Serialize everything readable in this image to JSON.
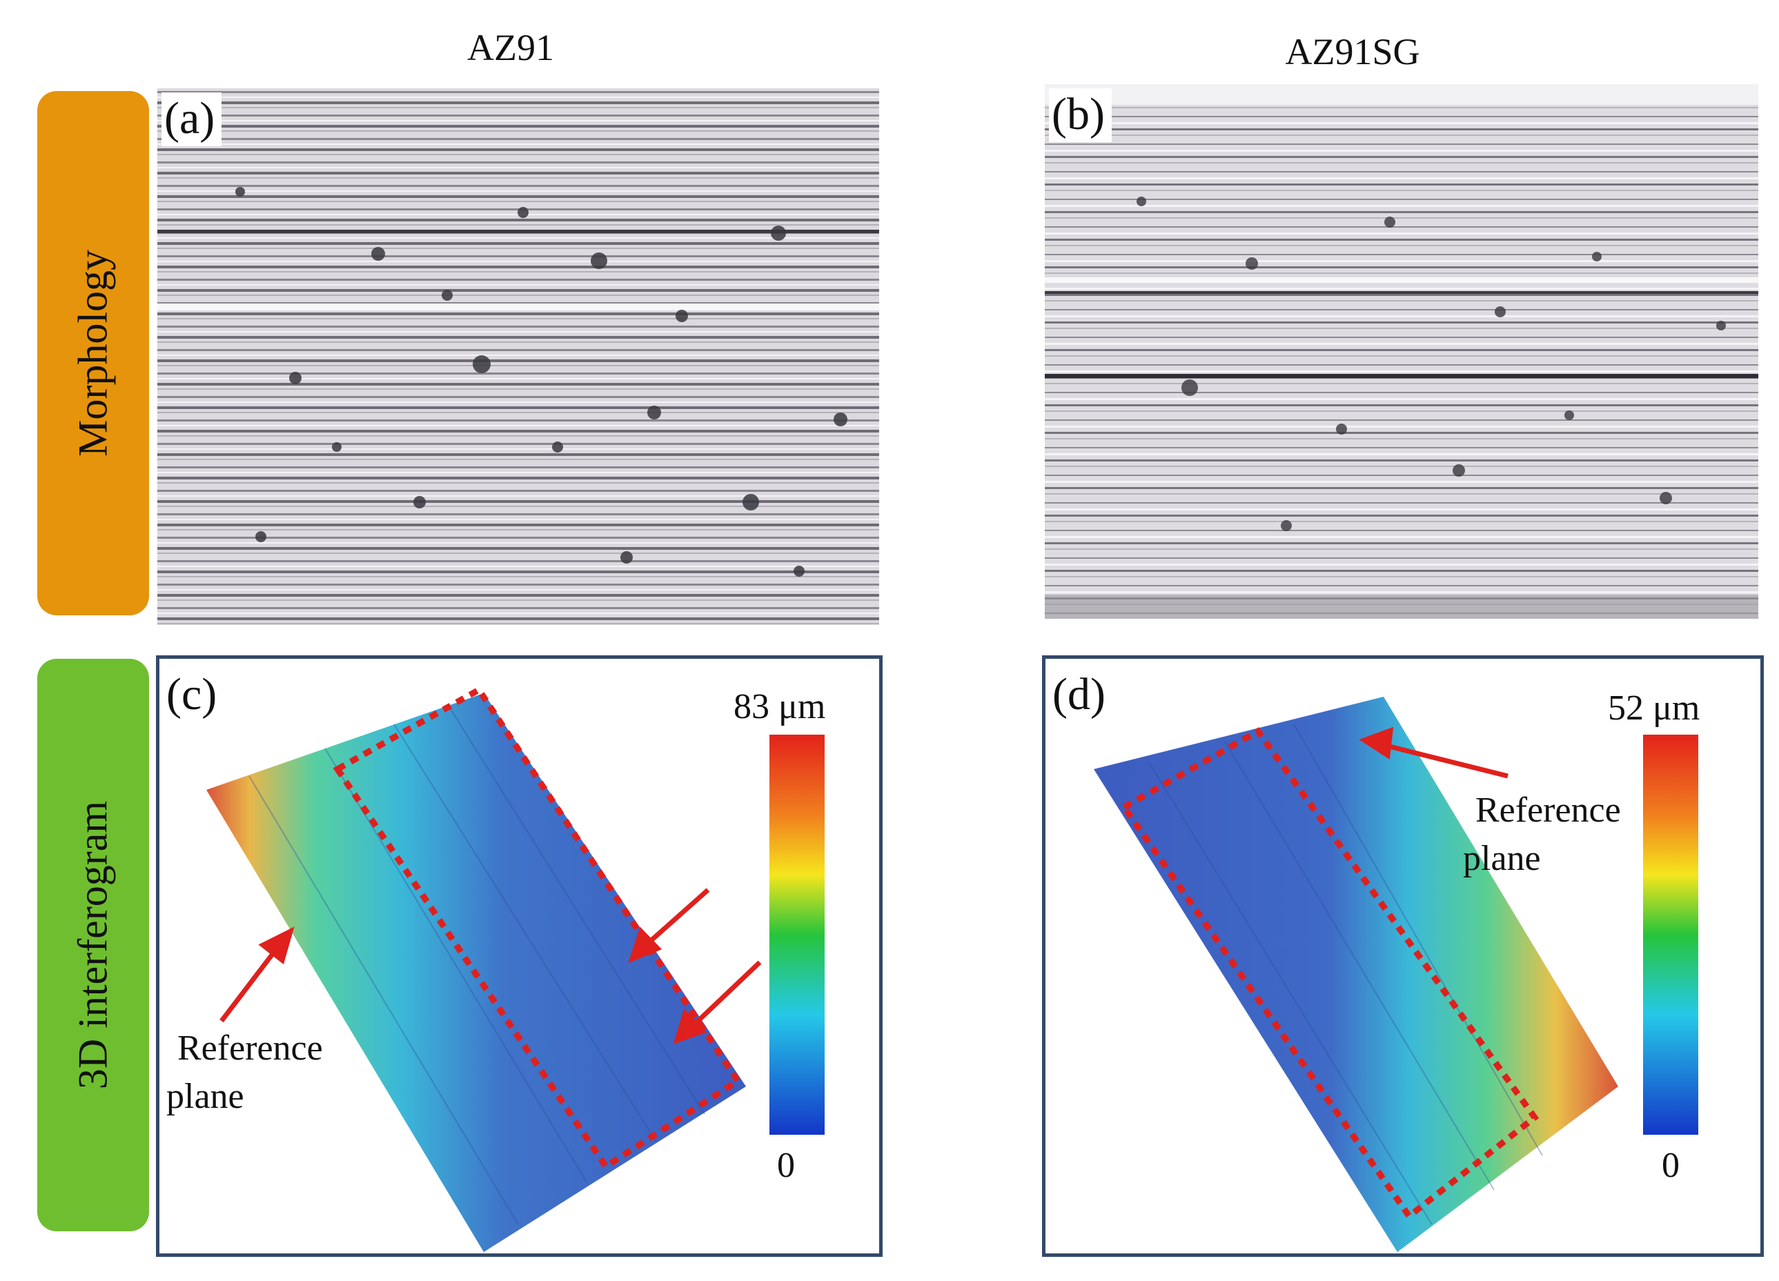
{
  "columns": {
    "left": "AZ91",
    "right": "AZ91SG"
  },
  "rows": {
    "morphology": {
      "label": "Morphology",
      "color": "#e5940c"
    },
    "interferogram": {
      "label": "3D interferogram",
      "color": "#6fbe2f"
    }
  },
  "panels": {
    "a": {
      "label": "(a)"
    },
    "b": {
      "label": "(b)"
    },
    "c": {
      "label": "(c)",
      "scale_max": "83  μm",
      "scale_min": "0",
      "annotation_line1": "Reference",
      "annotation_line2": "plane"
    },
    "d": {
      "label": "(d)",
      "scale_max": "52  μm",
      "scale_min": "0",
      "annotation_line1": "Reference",
      "annotation_line2": "plane"
    }
  },
  "colors": {
    "frame": "#33496b",
    "marker": "#e0201c"
  }
}
